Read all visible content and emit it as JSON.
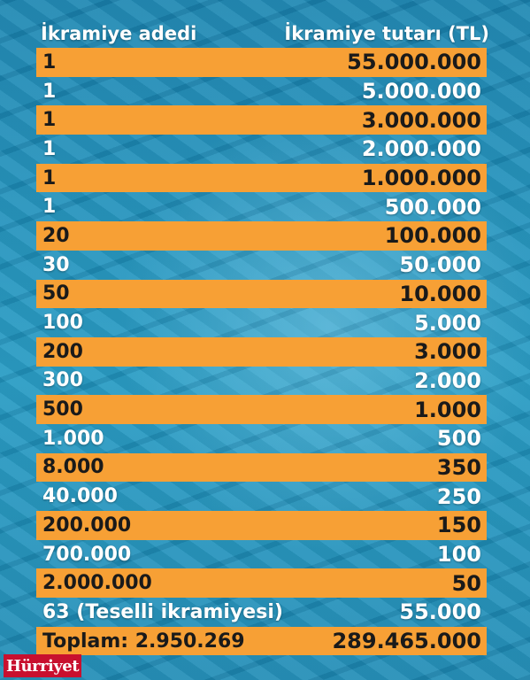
{
  "header": {
    "col_count": "İkramiye adedi",
    "col_amount": "İkramiye tutarı (TL)"
  },
  "colors": {
    "orange_row": "#f7a035",
    "background": "#1f8fb8",
    "logo_red": "#c8102e"
  },
  "rows": [
    {
      "count": "1",
      "amount": "55.000.000",
      "style": "orange"
    },
    {
      "count": "1",
      "amount": "5.000.000",
      "style": "plain"
    },
    {
      "count": "1",
      "amount": "3.000.000",
      "style": "orange"
    },
    {
      "count": "1",
      "amount": "2.000.000",
      "style": "plain"
    },
    {
      "count": "1",
      "amount": "1.000.000",
      "style": "orange"
    },
    {
      "count": "1",
      "amount": "500.000",
      "style": "plain"
    },
    {
      "count": "20",
      "amount": "100.000",
      "style": "orange"
    },
    {
      "count": "30",
      "amount": "50.000",
      "style": "plain"
    },
    {
      "count": "50",
      "amount": "10.000",
      "style": "orange"
    },
    {
      "count": "100",
      "amount": "5.000",
      "style": "plain"
    },
    {
      "count": "200",
      "amount": "3.000",
      "style": "orange"
    },
    {
      "count": "300",
      "amount": "2.000",
      "style": "plain"
    },
    {
      "count": "500",
      "amount": "1.000",
      "style": "orange"
    },
    {
      "count": "1.000",
      "amount": "500",
      "style": "plain"
    },
    {
      "count": "8.000",
      "amount": "350",
      "style": "orange"
    },
    {
      "count": "40.000",
      "amount": "250",
      "style": "plain"
    },
    {
      "count": "200.000",
      "amount": "150",
      "style": "orange"
    },
    {
      "count": "700.000",
      "amount": "100",
      "style": "plain"
    },
    {
      "count": "2.000.000",
      "amount": "50",
      "style": "orange"
    },
    {
      "count": "63 (Teselli ikramiyesi)",
      "amount": "55.000",
      "style": "plain"
    },
    {
      "count": "Toplam: 2.950.269",
      "amount": "289.465.000",
      "style": "orange"
    }
  ],
  "logo": {
    "text": "Hürriyet"
  }
}
